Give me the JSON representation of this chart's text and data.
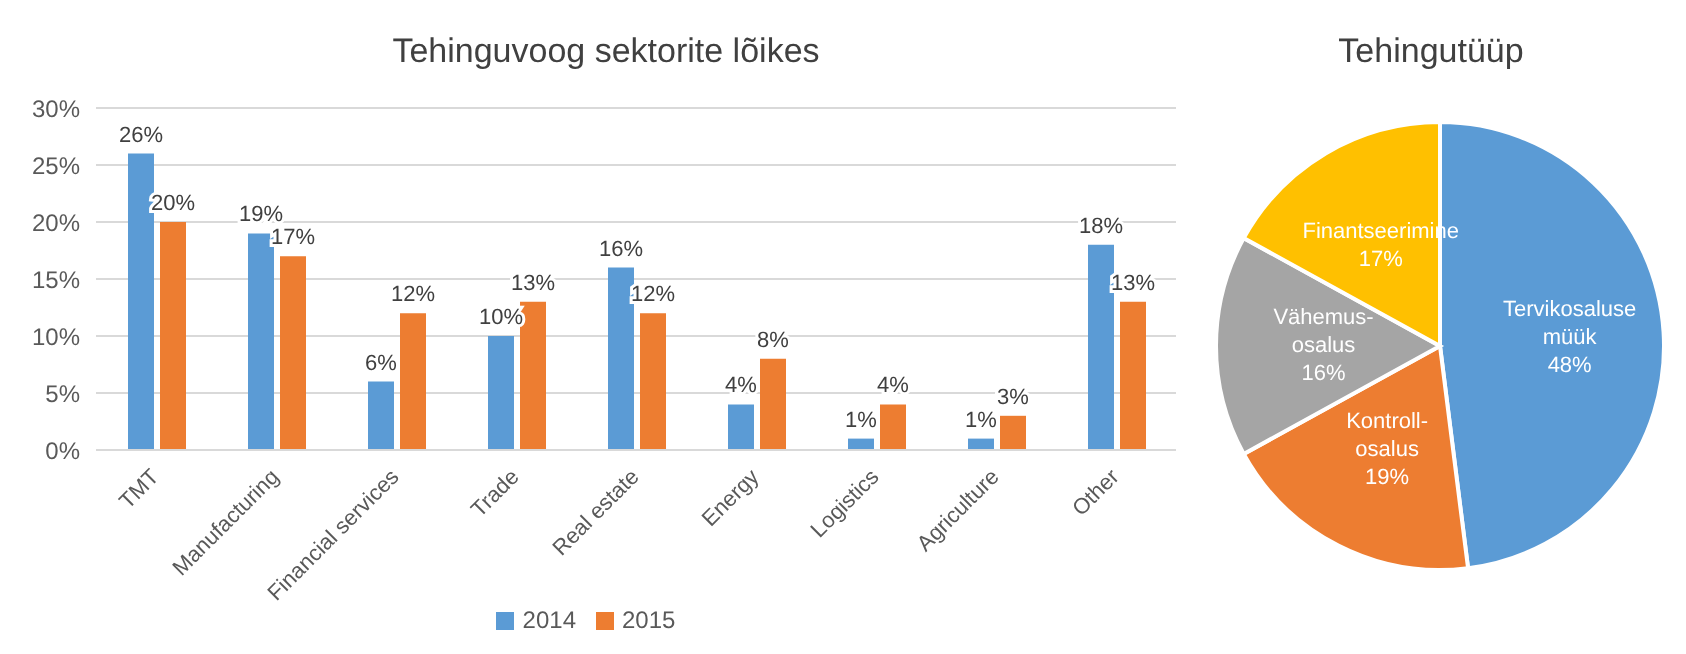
{
  "chart_data": [
    {
      "type": "bar",
      "title": "Tehinguvoog sektorite lõikes",
      "categories": [
        "TMT",
        "Manufacturing",
        "Financial services",
        "Trade",
        "Real estate",
        "Energy",
        "Logistics",
        "Agriculture",
        "Other"
      ],
      "series": [
        {
          "name": "2014",
          "color": "#5b9bd5",
          "values": [
            26,
            19,
            6,
            10,
            16,
            4,
            1,
            1,
            18
          ],
          "value_labels": [
            "26%",
            "19%",
            "6%",
            "10%",
            "16%",
            "4%",
            "1%",
            "1%",
            "18%"
          ]
        },
        {
          "name": "2015",
          "color": "#ed7d31",
          "values": [
            20,
            17,
            12,
            13,
            12,
            8,
            4,
            3,
            13
          ],
          "value_labels": [
            "20%",
            "17%",
            "12%",
            "13%",
            "12%",
            "8%",
            "4%",
            "3%",
            "13%"
          ]
        }
      ],
      "ylim": [
        0,
        30
      ],
      "yticks": [
        {
          "value": 0,
          "label": "0%"
        },
        {
          "value": 5,
          "label": "5%"
        },
        {
          "value": 10,
          "label": "10%"
        },
        {
          "value": 15,
          "label": "15%"
        },
        {
          "value": 20,
          "label": "20%"
        },
        {
          "value": 25,
          "label": "25%"
        },
        {
          "value": 30,
          "label": "30%"
        }
      ],
      "grid": "y",
      "legend": "bottom"
    },
    {
      "type": "pie",
      "title": "Tehingutüüp",
      "categories": [
        "Tervikosaluse müük",
        "Kontroll-osalus",
        "Vähemus-osalus",
        "Finantseerimine"
      ],
      "values": [
        48,
        19,
        16,
        17
      ],
      "value_labels": [
        "48%",
        "19%",
        "16%",
        "17%"
      ],
      "colors": [
        "#5b9bd5",
        "#ed7d31",
        "#a5a5a5",
        "#ffc000"
      ]
    }
  ]
}
